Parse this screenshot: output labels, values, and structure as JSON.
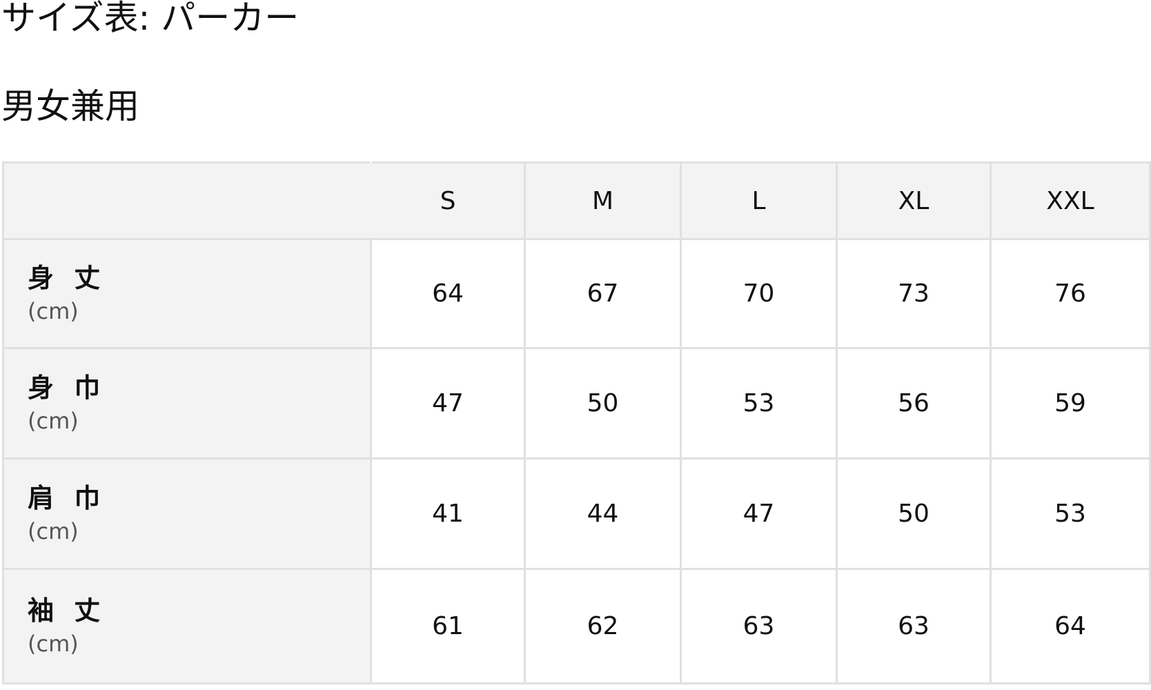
{
  "title": "サイズ表: パーカー",
  "subtitle": "男女兼用",
  "table": {
    "columns": [
      "S",
      "M",
      "L",
      "XL",
      "XXL"
    ],
    "rows": [
      {
        "label": "身 丈",
        "unit": "(cm)",
        "values": [
          "64",
          "67",
          "70",
          "73",
          "76"
        ]
      },
      {
        "label": "身 巾",
        "unit": "(cm)",
        "values": [
          "47",
          "50",
          "53",
          "56",
          "59"
        ]
      },
      {
        "label": "肩 巾",
        "unit": "(cm)",
        "values": [
          "41",
          "44",
          "47",
          "50",
          "53"
        ]
      },
      {
        "label": "袖 丈",
        "unit": "(cm)",
        "values": [
          "61",
          "62",
          "63",
          "63",
          "64"
        ]
      }
    ]
  }
}
